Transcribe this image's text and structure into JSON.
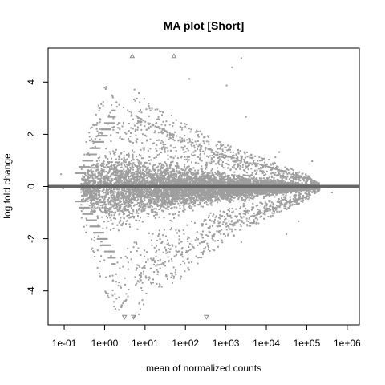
{
  "chart_data": {
    "type": "scatter",
    "title": "MA plot [Short]",
    "xlabel": "mean of normalized counts",
    "ylabel": "log fold change",
    "xscale": "log10",
    "xlim": [
      0.04,
      2000000
    ],
    "ylim": [
      -5.3,
      5.3
    ],
    "x_ticks": [
      {
        "value": 0.1,
        "label": "1e-01"
      },
      {
        "value": 1,
        "label": "1e+00"
      },
      {
        "value": 10,
        "label": "1e+01"
      },
      {
        "value": 100,
        "label": "1e+02"
      },
      {
        "value": 1000,
        "label": "1e+03"
      },
      {
        "value": 10000,
        "label": "1e+04"
      },
      {
        "value": 100000,
        "label": "1e+05"
      },
      {
        "value": 1000000,
        "label": "1e+06"
      }
    ],
    "y_ticks": [
      {
        "value": -4,
        "label": "-4"
      },
      {
        "value": -2,
        "label": "-2"
      },
      {
        "value": 0,
        "label": "0"
      },
      {
        "value": 2,
        "label": "2"
      },
      {
        "value": 4,
        "label": "4"
      }
    ],
    "hline": 0,
    "point_color": "#9e9e9e",
    "hline_color": "#666666",
    "grid": false,
    "legend": "none",
    "outliers_up": [
      {
        "x": 4.8,
        "y": 5.0
      },
      {
        "x": 52,
        "y": 5.0
      }
    ],
    "outliers_down": [
      {
        "x": 3.1,
        "y": -5.0
      },
      {
        "x": 5.2,
        "y": -5.0
      },
      {
        "x": 330,
        "y": -5.0
      }
    ],
    "extreme_points": [
      {
        "x": 2300,
        "y": 4.95
      },
      {
        "x": 1350,
        "y": 4.6
      },
      {
        "x": 1000,
        "y": 3.9
      },
      {
        "x": 120,
        "y": 4.15
      },
      {
        "x": 0.08,
        "y": 0.5
      },
      {
        "x": 0.09,
        "y": -0.05
      },
      {
        "x": 800000,
        "y": 0.0
      },
      {
        "x": 120000,
        "y": 0.2
      },
      {
        "x": 400000,
        "y": -0.2
      },
      {
        "x": 20000,
        "y": 1.35
      },
      {
        "x": 16000,
        "y": 1.15
      },
      {
        "x": 30000,
        "y": -1.8
      },
      {
        "x": 60000,
        "y": -1.3
      },
      {
        "x": 2300,
        "y": -2.1
      },
      {
        "x": 130000,
        "y": 1.0
      },
      {
        "x": 3000,
        "y": 2.7
      }
    ],
    "cloud_envelope": [
      {
        "x": 0.25,
        "upper": 1.1,
        "lower": -1.2
      },
      {
        "x": 0.5,
        "upper": 2.6,
        "lower": -2.6
      },
      {
        "x": 1.0,
        "upper": 3.9,
        "lower": -4.0
      },
      {
        "x": 2.0,
        "upper": 3.2,
        "lower": -4.8
      },
      {
        "x": 10,
        "upper": 2.5,
        "lower": -3.2
      },
      {
        "x": 100,
        "upper": 1.8,
        "lower": -2.5
      },
      {
        "x": 1000,
        "upper": 1.2,
        "lower": -1.5
      },
      {
        "x": 10000,
        "upper": 0.8,
        "lower": -0.9
      },
      {
        "x": 100000,
        "upper": 0.35,
        "lower": -0.35
      },
      {
        "x": 200000,
        "upper": 0.15,
        "lower": -0.15
      }
    ]
  }
}
